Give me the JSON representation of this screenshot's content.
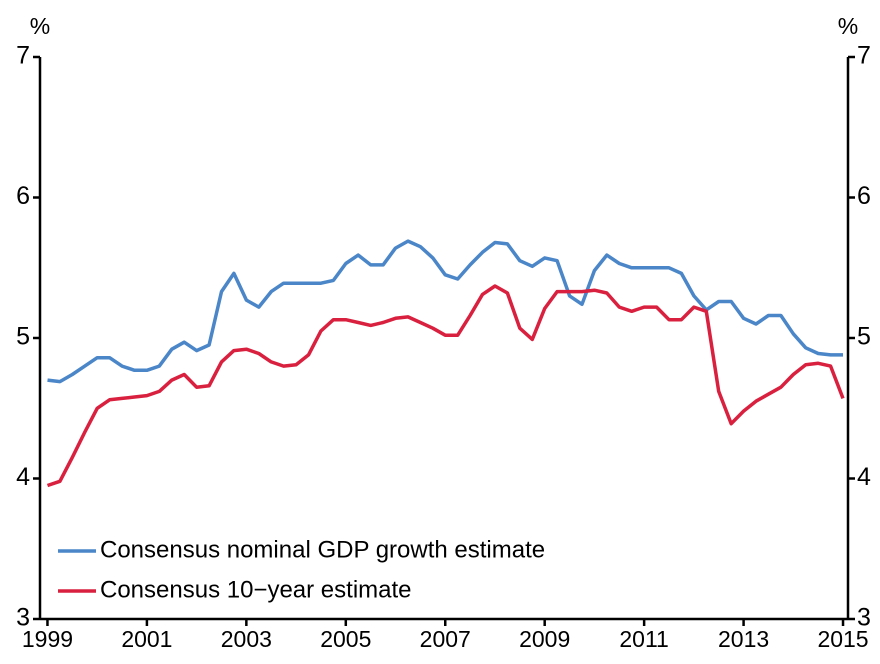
{
  "chart_data": {
    "type": "line",
    "ylabel": "%",
    "y2label": "%",
    "x": [
      1999.0,
      1999.25,
      1999.5,
      1999.75,
      2000.0,
      2000.25,
      2000.5,
      2000.75,
      2001.0,
      2001.25,
      2001.5,
      2001.75,
      2002.0,
      2002.25,
      2002.5,
      2002.75,
      2003.0,
      2003.25,
      2003.5,
      2003.75,
      2004.0,
      2004.25,
      2004.5,
      2004.75,
      2005.0,
      2005.25,
      2005.5,
      2005.75,
      2006.0,
      2006.25,
      2006.5,
      2006.75,
      2007.0,
      2007.25,
      2007.5,
      2007.75,
      2008.0,
      2008.25,
      2008.5,
      2008.75,
      2009.0,
      2009.25,
      2009.5,
      2009.75,
      2010.0,
      2010.25,
      2010.5,
      2010.75,
      2011.0,
      2011.25,
      2011.5,
      2011.75,
      2012.0,
      2012.25,
      2012.5,
      2012.75,
      2013.0,
      2013.25,
      2013.5,
      2013.75,
      2014.0,
      2014.25,
      2014.5,
      2014.75,
      2015.0
    ],
    "series": [
      {
        "name": "Consensus nominal GDP growth estimate",
        "color": "#4a86c8",
        "values": [
          4.7,
          4.69,
          4.74,
          4.8,
          4.86,
          4.86,
          4.8,
          4.77,
          4.77,
          4.8,
          4.92,
          4.97,
          4.91,
          4.95,
          5.33,
          5.46,
          5.27,
          5.22,
          5.33,
          5.39,
          5.39,
          5.39,
          5.39,
          5.41,
          5.53,
          5.59,
          5.52,
          5.52,
          5.64,
          5.69,
          5.65,
          5.57,
          5.45,
          5.42,
          5.52,
          5.61,
          5.68,
          5.67,
          5.55,
          5.51,
          5.57,
          5.55,
          5.3,
          5.24,
          5.48,
          5.59,
          5.53,
          5.5,
          5.5,
          5.5,
          5.5,
          5.46,
          5.3,
          5.2,
          5.26,
          5.26,
          5.14,
          5.1,
          5.16,
          5.16,
          5.03,
          4.93,
          4.89,
          4.88,
          4.88
        ]
      },
      {
        "name": "Consensus 10−year estimate",
        "color": "#d9203e",
        "values": [
          3.95,
          3.98,
          4.15,
          4.33,
          4.5,
          4.56,
          4.57,
          4.58,
          4.59,
          4.62,
          4.7,
          4.74,
          4.65,
          4.66,
          4.83,
          4.91,
          4.92,
          4.89,
          4.83,
          4.8,
          4.81,
          4.88,
          5.05,
          5.13,
          5.13,
          5.11,
          5.09,
          5.11,
          5.14,
          5.15,
          5.11,
          5.07,
          5.02,
          5.02,
          5.16,
          5.31,
          5.37,
          5.32,
          5.07,
          4.99,
          5.21,
          5.33,
          5.33,
          5.33,
          5.34,
          5.32,
          5.22,
          5.19,
          5.22,
          5.22,
          5.13,
          5.13,
          5.22,
          5.19,
          4.62,
          4.39,
          4.48,
          4.55,
          4.6,
          4.65,
          4.74,
          4.81,
          4.82,
          4.8,
          4.57
        ]
      }
    ],
    "xlim": [
      1998.85,
      2015.1
    ],
    "xticks": [
      1999,
      2001,
      2003,
      2005,
      2007,
      2009,
      2011,
      2013,
      2015
    ],
    "ylim": [
      3,
      7
    ],
    "yticks": [
      3,
      4,
      5,
      6,
      7
    ],
    "y2lim": [
      3,
      7
    ],
    "y2ticks": [
      3,
      4,
      5,
      6,
      7
    ],
    "legend": "lower left"
  }
}
